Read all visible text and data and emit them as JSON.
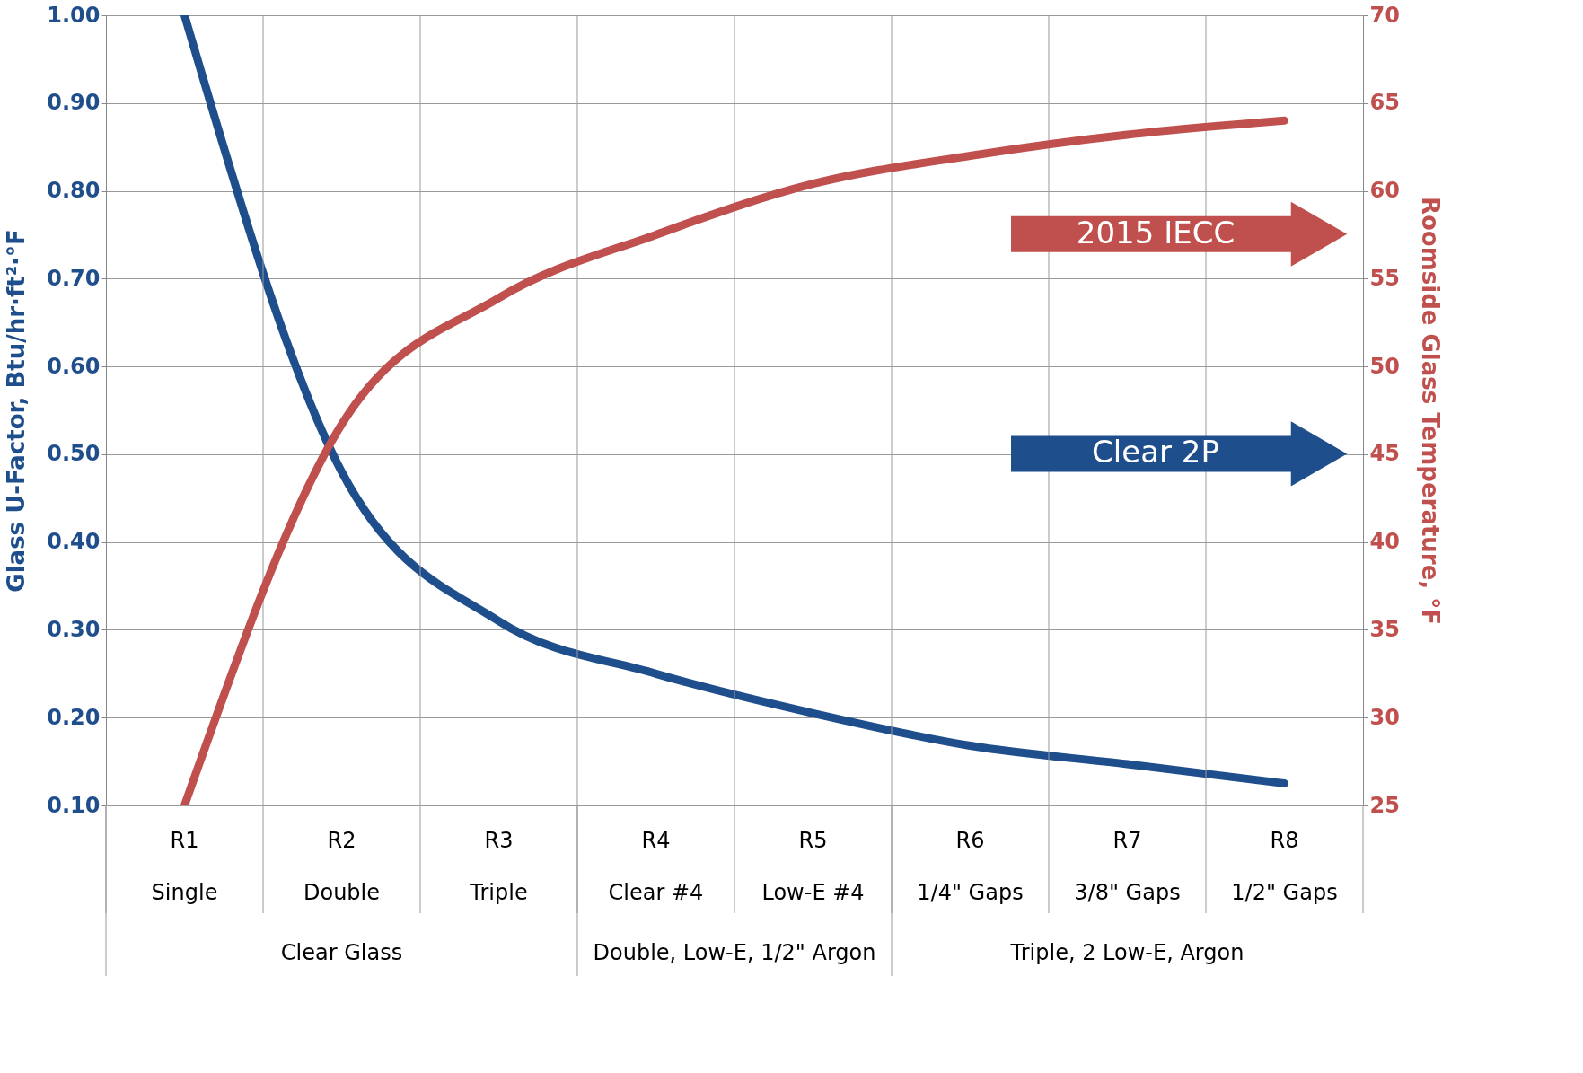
{
  "chart_data": {
    "type": "line",
    "categories": [
      "R1\nSingle",
      "R2\nDouble",
      "R3\nTriple",
      "R4\nClear #4",
      "R5\nLow-E #4",
      "R6\n1/4\" Gaps",
      "R7\n3/8\" Gaps",
      "R8\n1/2\" Gaps"
    ],
    "ylabel": "Glass U-Factor, Btu/hr·ft²·°F",
    "y2label": "Roomside Glass Temperature, °F",
    "series": [
      {
        "color": "#1f4e8c",
        "values": [
          1.0,
          0.48,
          0.31,
          0.25,
          0.205,
          0.168,
          0.147,
          0.125
        ]
      },
      {
        "color": "#c0504d",
        "axis": "y2",
        "values": [
          25,
          46.7,
          53.9,
          57.5,
          60.4,
          62.0,
          63.2,
          64.0
        ]
      }
    ],
    "ylim": [
      0.1,
      1.0
    ],
    "yticks": [
      {
        "value": 0.1,
        "label": "0.10"
      },
      {
        "value": 0.2,
        "label": "0.20"
      },
      {
        "value": 0.3,
        "label": "0.30"
      },
      {
        "value": 0.4,
        "label": "0.40"
      },
      {
        "value": 0.5,
        "label": "0.50"
      },
      {
        "value": 0.6,
        "label": "0.60"
      },
      {
        "value": 0.7,
        "label": "0.70"
      },
      {
        "value": 0.8,
        "label": "0.80"
      },
      {
        "value": 0.9,
        "label": "0.90"
      },
      {
        "value": 1.0,
        "label": "1.00"
      }
    ],
    "y2lim": [
      25,
      70
    ],
    "y2ticks": [
      25,
      30,
      35,
      40,
      45,
      50,
      55,
      60,
      65,
      70
    ],
    "annotations": [
      "2015 IECC",
      "Clear 2P",
      "Clear Glass",
      "Double, Low-E, 1/2\" Argon",
      "Triple, 2 Low-E, Argon"
    ],
    "grid": true,
    "line_style": "solid",
    "marker": "none"
  }
}
